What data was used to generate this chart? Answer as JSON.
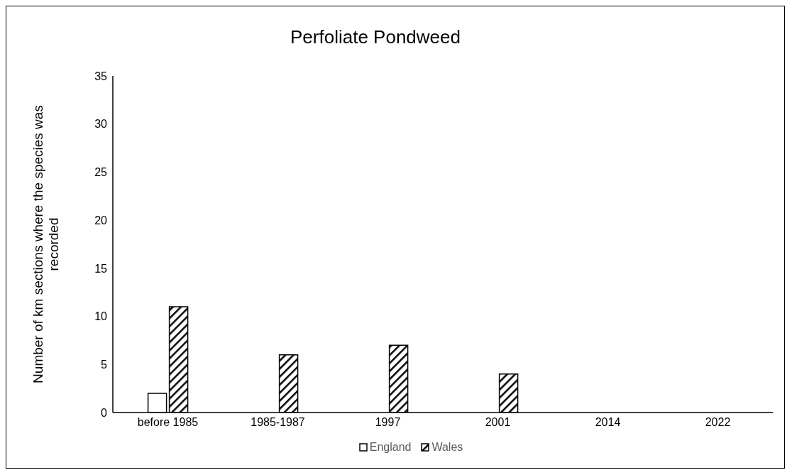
{
  "chart_data": {
    "type": "bar",
    "title": "Perfoliate Pondweed",
    "ylabel": "Number of km sections where the species was recorded",
    "categories": [
      "before 1985",
      "1985-1987",
      "1997",
      "2001",
      "2014",
      "2022"
    ],
    "series": [
      {
        "name": "England",
        "color": "#ffffff",
        "values": [
          2,
          0,
          0,
          0,
          0,
          0
        ]
      },
      {
        "name": "Wales",
        "color": "#000000",
        "values": [
          11,
          6,
          7,
          4,
          0,
          0
        ]
      }
    ],
    "ylim": [
      0,
      35
    ],
    "yticks": [
      0,
      5,
      10,
      15,
      20,
      25,
      30,
      35
    ],
    "legend": "bottom"
  }
}
